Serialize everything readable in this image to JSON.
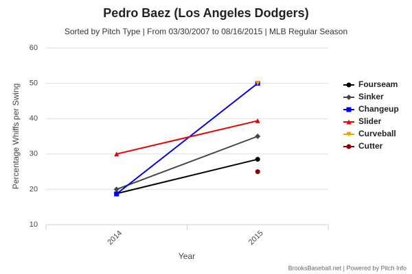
{
  "chart_data": {
    "type": "line",
    "title": "Pedro Baez (Los Angeles Dodgers)",
    "subtitle": "Sorted by Pitch Type | From 03/30/2007 to 08/16/2015 | MLB Regular Season",
    "x_label": "Year",
    "y_label": "Percentage Whiffs per Swing",
    "footer": "BrooksBaseball.net | Powered by Pitch Info",
    "categories": [
      "2014",
      "2015"
    ],
    "ylim": [
      10,
      60
    ],
    "yticks": [
      10,
      20,
      30,
      40,
      50,
      60
    ],
    "grid": true,
    "legend": "right",
    "series": [
      {
        "name": "Fourseam",
        "color": "#000000",
        "marker": "circle",
        "values": [
          18.8,
          28.5
        ]
      },
      {
        "name": "Sinker",
        "color": "#444444",
        "marker": "diamond",
        "values": [
          20,
          35
        ]
      },
      {
        "name": "Changeup",
        "color": "#0000ee",
        "marker": "square",
        "values": [
          18.7,
          50
        ]
      },
      {
        "name": "Slider",
        "color": "#ee0000",
        "marker": "triangle",
        "values": [
          30,
          39.4
        ]
      },
      {
        "name": "Curveball",
        "color": "#eea000",
        "marker": "triangle-down",
        "values": [
          null,
          50
        ]
      },
      {
        "name": "Cutter",
        "color": "#8b0000",
        "marker": "circle",
        "values": [
          null,
          25
        ]
      }
    ]
  }
}
